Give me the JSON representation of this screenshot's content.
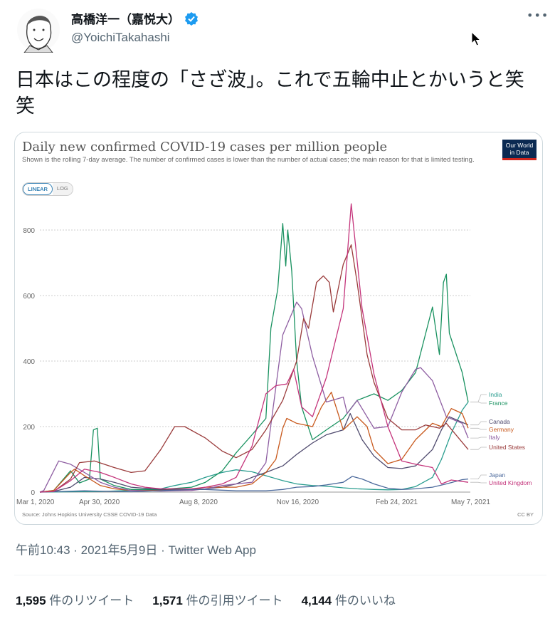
{
  "tweet": {
    "author_name": "高橋洋一（嘉悦大）",
    "handle": "@YoichiTakahashi",
    "verified": true,
    "more_icon": "ellipsis-icon",
    "text": "日本はこの程度の「さざ波」。これで五輪中止とかいうと笑笑",
    "timestamp": "午前10:43 · 2021年5月9日 · Twitter Web App",
    "stats": [
      {
        "count": "1,595",
        "label": "件のリツイート"
      },
      {
        "count": "1,571",
        "label": "件の引用ツイート"
      },
      {
        "count": "4,144",
        "label": "件のいいね"
      }
    ]
  },
  "chart_card": {
    "logo_text": "Our World in Data",
    "scale_options": [
      "LINEAR",
      "LOG"
    ],
    "selected_scale": "LINEAR",
    "source": "Source: Johns Hopkins University CSSE COVID-19 Data",
    "license": "CC BY"
  },
  "chart_data": {
    "type": "line",
    "title": "Daily new confirmed COVID-19 cases per million people",
    "subtitle": "Shown is the rolling 7-day average. The number of confirmed cases is lower than the number of actual cases; the main reason for that is limited testing.",
    "xlim": [
      "2020-03-01",
      "2021-05-07"
    ],
    "ylim": [
      0,
      880
    ],
    "yticks": [
      0,
      200,
      400,
      600,
      800
    ],
    "xtick_labels": [
      {
        "date": "2020-03-01",
        "label": "Mar 1, 2020"
      },
      {
        "date": "2020-04-30",
        "label": "Apr 30, 2020"
      },
      {
        "date": "2020-08-08",
        "label": "Aug 8, 2020"
      },
      {
        "date": "2020-11-16",
        "label": "Nov 16, 2020"
      },
      {
        "date": "2021-02-24",
        "label": "Feb 24, 2021"
      },
      {
        "date": "2021-05-07",
        "label": "May 7, 2021"
      }
    ],
    "grid": "horizontal-dotted",
    "legend": "right (line-end labels)",
    "series": [
      {
        "name": "India",
        "color": "#2a9d8f",
        "points": [
          [
            "2020-03-01",
            0
          ],
          [
            "2020-05-01",
            2
          ],
          [
            "2020-06-01",
            5
          ],
          [
            "2020-07-01",
            10
          ],
          [
            "2020-07-15",
            20
          ],
          [
            "2020-08-01",
            30
          ],
          [
            "2020-08-15",
            45
          ],
          [
            "2020-09-01",
            60
          ],
          [
            "2020-09-15",
            68
          ],
          [
            "2020-10-01",
            62
          ],
          [
            "2020-10-15",
            50
          ],
          [
            "2020-11-01",
            35
          ],
          [
            "2020-11-15",
            25
          ],
          [
            "2020-12-01",
            20
          ],
          [
            "2020-12-15",
            18
          ],
          [
            "2021-01-01",
            13
          ],
          [
            "2021-01-15",
            10
          ],
          [
            "2021-02-01",
            8
          ],
          [
            "2021-02-15",
            7
          ],
          [
            "2021-03-01",
            8
          ],
          [
            "2021-03-15",
            17
          ],
          [
            "2021-04-01",
            45
          ],
          [
            "2021-04-10",
            100
          ],
          [
            "2021-04-20",
            180
          ],
          [
            "2021-05-01",
            250
          ],
          [
            "2021-05-07",
            275
          ]
        ]
      },
      {
        "name": "France",
        "color": "#18915f",
        "points": [
          [
            "2020-03-01",
            0
          ],
          [
            "2020-03-15",
            5
          ],
          [
            "2020-04-01",
            65
          ],
          [
            "2020-04-10",
            28
          ],
          [
            "2020-04-20",
            40
          ],
          [
            "2020-04-24",
            190
          ],
          [
            "2020-04-28",
            195
          ],
          [
            "2020-05-01",
            40
          ],
          [
            "2020-05-15",
            20
          ],
          [
            "2020-06-01",
            8
          ],
          [
            "2020-07-01",
            8
          ],
          [
            "2020-08-01",
            15
          ],
          [
            "2020-08-15",
            30
          ],
          [
            "2020-09-01",
            65
          ],
          [
            "2020-09-15",
            120
          ],
          [
            "2020-10-01",
            175
          ],
          [
            "2020-10-15",
            225
          ],
          [
            "2020-10-20",
            500
          ],
          [
            "2020-10-27",
            620
          ],
          [
            "2020-11-01",
            820
          ],
          [
            "2020-11-04",
            690
          ],
          [
            "2020-11-06",
            800
          ],
          [
            "2020-11-10",
            675
          ],
          [
            "2020-11-15",
            400
          ],
          [
            "2020-11-20",
            260
          ],
          [
            "2020-12-01",
            160
          ],
          [
            "2020-12-15",
            190
          ],
          [
            "2021-01-01",
            225
          ],
          [
            "2021-01-15",
            280
          ],
          [
            "2021-02-01",
            300
          ],
          [
            "2021-02-15",
            280
          ],
          [
            "2021-03-01",
            310
          ],
          [
            "2021-03-15",
            365
          ],
          [
            "2021-04-01",
            565
          ],
          [
            "2021-04-08",
            420
          ],
          [
            "2021-04-12",
            640
          ],
          [
            "2021-04-15",
            665
          ],
          [
            "2021-04-18",
            485
          ],
          [
            "2021-05-01",
            365
          ],
          [
            "2021-05-07",
            275
          ]
        ]
      },
      {
        "name": "Canada",
        "color": "#4f4a6e",
        "points": [
          [
            "2020-03-01",
            0
          ],
          [
            "2020-03-15",
            2
          ],
          [
            "2020-04-01",
            15
          ],
          [
            "2020-04-15",
            45
          ],
          [
            "2020-05-01",
            40
          ],
          [
            "2020-05-15",
            30
          ],
          [
            "2020-06-01",
            15
          ],
          [
            "2020-07-01",
            8
          ],
          [
            "2020-08-01",
            8
          ],
          [
            "2020-08-15",
            10
          ],
          [
            "2020-09-01",
            15
          ],
          [
            "2020-09-15",
            25
          ],
          [
            "2020-10-01",
            45
          ],
          [
            "2020-10-15",
            60
          ],
          [
            "2020-11-01",
            80
          ],
          [
            "2020-11-15",
            115
          ],
          [
            "2020-12-01",
            150
          ],
          [
            "2020-12-15",
            175
          ],
          [
            "2021-01-01",
            190
          ],
          [
            "2021-01-08",
            240
          ],
          [
            "2021-01-20",
            160
          ],
          [
            "2021-02-01",
            110
          ],
          [
            "2021-02-15",
            75
          ],
          [
            "2021-03-01",
            72
          ],
          [
            "2021-03-15",
            80
          ],
          [
            "2021-04-01",
            130
          ],
          [
            "2021-04-10",
            190
          ],
          [
            "2021-04-18",
            230
          ],
          [
            "2021-05-07",
            205
          ]
        ]
      },
      {
        "name": "Germany",
        "color": "#c8591d",
        "points": [
          [
            "2020-03-01",
            0
          ],
          [
            "2020-03-15",
            5
          ],
          [
            "2020-04-01",
            60
          ],
          [
            "2020-04-05",
            70
          ],
          [
            "2020-04-15",
            50
          ],
          [
            "2020-05-01",
            20
          ],
          [
            "2020-05-15",
            10
          ],
          [
            "2020-06-01",
            5
          ],
          [
            "2020-07-01",
            5
          ],
          [
            "2020-08-01",
            8
          ],
          [
            "2020-08-15",
            15
          ],
          [
            "2020-09-15",
            15
          ],
          [
            "2020-10-01",
            25
          ],
          [
            "2020-10-15",
            60
          ],
          [
            "2020-10-25",
            100
          ],
          [
            "2020-11-01",
            195
          ],
          [
            "2020-11-05",
            225
          ],
          [
            "2020-11-15",
            210
          ],
          [
            "2020-12-01",
            200
          ],
          [
            "2020-12-10",
            260
          ],
          [
            "2020-12-20",
            305
          ],
          [
            "2021-01-01",
            190
          ],
          [
            "2021-01-15",
            230
          ],
          [
            "2021-01-25",
            200
          ],
          [
            "2021-02-01",
            130
          ],
          [
            "2021-02-15",
            87
          ],
          [
            "2021-03-01",
            100
          ],
          [
            "2021-03-15",
            160
          ],
          [
            "2021-04-01",
            210
          ],
          [
            "2021-04-10",
            200
          ],
          [
            "2021-04-20",
            255
          ],
          [
            "2021-05-01",
            240
          ],
          [
            "2021-05-07",
            195
          ]
        ]
      },
      {
        "name": "Italy",
        "color": "#8e5ea2",
        "points": [
          [
            "2020-03-01",
            0
          ],
          [
            "2020-03-05",
            5
          ],
          [
            "2020-03-20",
            95
          ],
          [
            "2020-04-01",
            85
          ],
          [
            "2020-04-15",
            60
          ],
          [
            "2020-05-01",
            30
          ],
          [
            "2020-05-15",
            15
          ],
          [
            "2020-06-01",
            5
          ],
          [
            "2020-07-01",
            3
          ],
          [
            "2020-08-01",
            5
          ],
          [
            "2020-08-15",
            10
          ],
          [
            "2020-09-01",
            20
          ],
          [
            "2020-09-15",
            25
          ],
          [
            "2020-10-01",
            30
          ],
          [
            "2020-10-15",
            90
          ],
          [
            "2020-11-01",
            480
          ],
          [
            "2020-11-15",
            580
          ],
          [
            "2020-11-20",
            560
          ],
          [
            "2020-12-01",
            415
          ],
          [
            "2020-12-15",
            275
          ],
          [
            "2021-01-01",
            290
          ],
          [
            "2021-01-05",
            240
          ],
          [
            "2021-01-15",
            280
          ],
          [
            "2021-02-01",
            195
          ],
          [
            "2021-02-15",
            200
          ],
          [
            "2021-03-01",
            305
          ],
          [
            "2021-03-15",
            375
          ],
          [
            "2021-03-20",
            380
          ],
          [
            "2021-04-01",
            340
          ],
          [
            "2021-04-15",
            230
          ],
          [
            "2021-05-01",
            210
          ],
          [
            "2021-05-07",
            165
          ]
        ]
      },
      {
        "name": "United States",
        "color": "#9a3b3b",
        "points": [
          [
            "2020-03-01",
            0
          ],
          [
            "2020-03-15",
            2
          ],
          [
            "2020-04-01",
            40
          ],
          [
            "2020-04-10",
            90
          ],
          [
            "2020-04-25",
            95
          ],
          [
            "2020-05-15",
            75
          ],
          [
            "2020-06-01",
            60
          ],
          [
            "2020-06-15",
            65
          ],
          [
            "2020-07-01",
            130
          ],
          [
            "2020-07-15",
            200
          ],
          [
            "2020-07-25",
            200
          ],
          [
            "2020-08-15",
            165
          ],
          [
            "2020-09-01",
            125
          ],
          [
            "2020-09-15",
            105
          ],
          [
            "2020-10-01",
            130
          ],
          [
            "2020-10-15",
            190
          ],
          [
            "2020-11-01",
            280
          ],
          [
            "2020-11-15",
            400
          ],
          [
            "2020-11-22",
            530
          ],
          [
            "2020-11-27",
            500
          ],
          [
            "2020-12-05",
            640
          ],
          [
            "2020-12-12",
            660
          ],
          [
            "2020-12-18",
            640
          ],
          [
            "2020-12-22",
            550
          ],
          [
            "2021-01-01",
            695
          ],
          [
            "2021-01-09",
            755
          ],
          [
            "2021-01-15",
            640
          ],
          [
            "2021-01-25",
            420
          ],
          [
            "2021-02-01",
            335
          ],
          [
            "2021-02-15",
            225
          ],
          [
            "2021-03-01",
            190
          ],
          [
            "2021-03-15",
            190
          ],
          [
            "2021-03-25",
            205
          ],
          [
            "2021-04-08",
            195
          ],
          [
            "2021-04-15",
            210
          ],
          [
            "2021-05-07",
            130
          ]
        ]
      },
      {
        "name": "Japan",
        "color": "#4c6a9c",
        "points": [
          [
            "2020-03-01",
            0
          ],
          [
            "2020-04-15",
            4
          ],
          [
            "2020-06-01",
            1
          ],
          [
            "2020-08-01",
            8
          ],
          [
            "2020-08-15",
            8
          ],
          [
            "2020-09-15",
            4
          ],
          [
            "2020-10-15",
            4
          ],
          [
            "2020-11-01",
            8
          ],
          [
            "2020-11-15",
            15
          ],
          [
            "2020-12-01",
            17
          ],
          [
            "2020-12-15",
            22
          ],
          [
            "2021-01-01",
            30
          ],
          [
            "2021-01-10",
            48
          ],
          [
            "2021-01-20",
            40
          ],
          [
            "2021-02-01",
            25
          ],
          [
            "2021-02-15",
            12
          ],
          [
            "2021-03-01",
            8
          ],
          [
            "2021-03-15",
            10
          ],
          [
            "2021-04-01",
            15
          ],
          [
            "2021-04-15",
            25
          ],
          [
            "2021-05-01",
            38
          ],
          [
            "2021-05-07",
            40
          ]
        ]
      },
      {
        "name": "United Kingdom",
        "color": "#c4347b",
        "points": [
          [
            "2020-03-01",
            0
          ],
          [
            "2020-03-15",
            2
          ],
          [
            "2020-04-01",
            35
          ],
          [
            "2020-04-15",
            70
          ],
          [
            "2020-05-01",
            60
          ],
          [
            "2020-05-15",
            45
          ],
          [
            "2020-06-01",
            25
          ],
          [
            "2020-06-15",
            15
          ],
          [
            "2020-07-01",
            10
          ],
          [
            "2020-08-01",
            10
          ],
          [
            "2020-08-15",
            15
          ],
          [
            "2020-09-01",
            25
          ],
          [
            "2020-09-15",
            45
          ],
          [
            "2020-10-01",
            140
          ],
          [
            "2020-10-15",
            300
          ],
          [
            "2020-10-25",
            325
          ],
          [
            "2020-11-05",
            330
          ],
          [
            "2020-11-12",
            375
          ],
          [
            "2020-11-20",
            260
          ],
          [
            "2020-12-01",
            230
          ],
          [
            "2020-12-15",
            350
          ],
          [
            "2021-01-01",
            560
          ],
          [
            "2021-01-09",
            880
          ],
          [
            "2021-01-20",
            560
          ],
          [
            "2021-02-01",
            360
          ],
          [
            "2021-02-15",
            200
          ],
          [
            "2021-03-01",
            95
          ],
          [
            "2021-03-15",
            85
          ],
          [
            "2021-04-01",
            75
          ],
          [
            "2021-04-10",
            25
          ],
          [
            "2021-04-20",
            37
          ],
          [
            "2021-05-07",
            30
          ]
        ]
      }
    ]
  }
}
